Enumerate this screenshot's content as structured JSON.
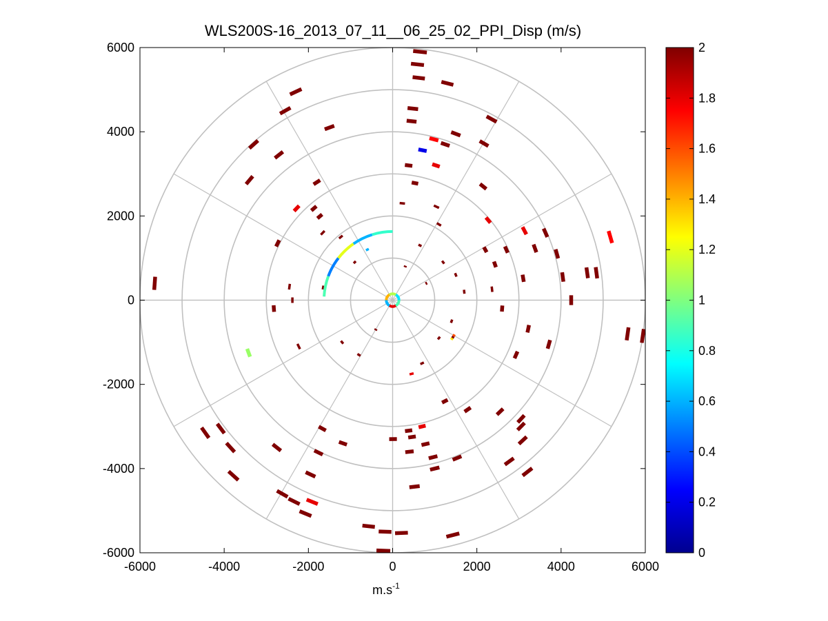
{
  "chart_data": {
    "type": "scatter",
    "plot_style": "polar PPI (plan position indicator) wind-lidar scan",
    "title": "WLS200S-16_2013_07_11__06_25_02_PPI_Disp (m/s)",
    "xlabel_base": "m.s",
    "xlabel_exponent": "-1",
    "xlim": [
      -6000,
      6000
    ],
    "ylim": [
      -6000,
      6000
    ],
    "x_ticks": [
      -6000,
      -4000,
      -2000,
      0,
      2000,
      4000,
      6000
    ],
    "y_ticks": [
      -6000,
      -4000,
      -2000,
      0,
      2000,
      4000,
      6000
    ],
    "x_tick_labels": [
      "-6000",
      "-4000",
      "-2000",
      "0",
      "2000",
      "4000",
      "6000"
    ],
    "y_tick_labels": [
      "-6000",
      "-4000",
      "-2000",
      "0",
      "2000",
      "4000",
      "6000"
    ],
    "range_rings": [
      1000,
      2000,
      3000,
      4000,
      5000,
      6000
    ],
    "spokes_deg": [
      0,
      30,
      60,
      90,
      120,
      150,
      180,
      210,
      240,
      270,
      300,
      330
    ],
    "colorbar": {
      "min": 0,
      "max": 2,
      "tick_values": [
        0,
        0.2,
        0.4,
        0.6,
        0.8,
        1,
        1.2,
        1.4,
        1.6,
        1.8,
        2
      ],
      "tick_labels": [
        "0",
        "0.2",
        "0.4",
        "0.6",
        "0.8",
        "1",
        "1.2",
        "1.4",
        "1.6",
        "1.8",
        "2"
      ],
      "colormap": "jet",
      "stops": [
        "#00008f",
        "#0000ff",
        "#00ffff",
        "#ffff00",
        "#ff0000",
        "#800000"
      ]
    },
    "grid_color": "#c0c0c0",
    "points": [
      {
        "x": 650,
        "y": 5900,
        "v": 2
      },
      {
        "x": 590,
        "y": 5600,
        "v": 2
      },
      {
        "x": 620,
        "y": 5280,
        "v": 2
      },
      {
        "x": 1300,
        "y": 5150,
        "v": 2
      },
      {
        "x": -2300,
        "y": 4950,
        "v": 2
      },
      {
        "x": -2550,
        "y": 4500,
        "v": 2
      },
      {
        "x": 480,
        "y": 4550,
        "v": 2
      },
      {
        "x": 450,
        "y": 4250,
        "v": 2
      },
      {
        "x": -1500,
        "y": 4100,
        "v": 2
      },
      {
        "x": 1500,
        "y": 3950,
        "v": 2
      },
      {
        "x": 2350,
        "y": 4300,
        "v": 2
      },
      {
        "x": -3300,
        "y": 3700,
        "v": 2
      },
      {
        "x": -2700,
        "y": 3450,
        "v": 2
      },
      {
        "x": 980,
        "y": 3820,
        "v": 1.75
      },
      {
        "x": 1250,
        "y": 3700,
        "v": 2
      },
      {
        "x": 2170,
        "y": 3720,
        "v": 2
      },
      {
        "x": 710,
        "y": 3560,
        "v": 0.2
      },
      {
        "x": 380,
        "y": 3200,
        "v": 2
      },
      {
        "x": 1030,
        "y": 3200,
        "v": 1.8
      },
      {
        "x": -3400,
        "y": 2850,
        "v": 2
      },
      {
        "x": -1800,
        "y": 2800,
        "v": 2
      },
      {
        "x": 530,
        "y": 2780,
        "v": 2
      },
      {
        "x": 2150,
        "y": 2700,
        "v": 2
      },
      {
        "x": -2280,
        "y": 2180,
        "v": 1.8
      },
      {
        "x": -1870,
        "y": 2180,
        "v": 2
      },
      {
        "x": 230,
        "y": 2300,
        "v": 2
      },
      {
        "x": 1040,
        "y": 2220,
        "v": 2
      },
      {
        "x": 2270,
        "y": 1900,
        "v": 1.8
      },
      {
        "x": 3130,
        "y": 1650,
        "v": 1.8
      },
      {
        "x": 3630,
        "y": 1600,
        "v": 2
      },
      {
        "x": 5170,
        "y": 1500,
        "v": 1.75
      },
      {
        "x": -1730,
        "y": 1990,
        "v": 2
      },
      {
        "x": -1660,
        "y": 1600,
        "v": 2
      },
      {
        "x": -2730,
        "y": 1350,
        "v": 2
      },
      {
        "x": -1230,
        "y": 1500,
        "v": 2
      },
      {
        "x": 3380,
        "y": 1230,
        "v": 2
      },
      {
        "x": 2200,
        "y": 1200,
        "v": 2
      },
      {
        "x": 2700,
        "y": 1200,
        "v": 2
      },
      {
        "x": 3900,
        "y": 1100,
        "v": 2
      },
      {
        "x": 2430,
        "y": 850,
        "v": 2
      },
      {
        "x": 4620,
        "y": 650,
        "v": 2
      },
      {
        "x": 4840,
        "y": 650,
        "v": 2
      },
      {
        "x": 4040,
        "y": 550,
        "v": 2
      },
      {
        "x": 3100,
        "y": 520,
        "v": 2
      },
      {
        "x": -5650,
        "y": 400,
        "v": 2
      },
      {
        "x": -2450,
        "y": 320,
        "v": 2
      },
      {
        "x": -2380,
        "y": 0,
        "v": 2
      },
      {
        "x": 2360,
        "y": 260,
        "v": 2
      },
      {
        "x": 4240,
        "y": 0,
        "v": 2
      },
      {
        "x": -2820,
        "y": -200,
        "v": 2
      },
      {
        "x": 2600,
        "y": -200,
        "v": 2
      },
      {
        "x": 5580,
        "y": -800,
        "v": 2
      },
      {
        "x": 5940,
        "y": -850,
        "v": 2
      },
      {
        "x": 3220,
        "y": -680,
        "v": 2
      },
      {
        "x": -3420,
        "y": -1250,
        "v": 1.05
      },
      {
        "x": -2230,
        "y": -1100,
        "v": 2
      },
      {
        "x": 3710,
        "y": -1050,
        "v": 2
      },
      {
        "x": 2930,
        "y": -1300,
        "v": 2
      },
      {
        "x": 1240,
        "y": -2400,
        "v": 2
      },
      {
        "x": 1780,
        "y": -2600,
        "v": 2
      },
      {
        "x": 2550,
        "y": -2650,
        "v": 2
      },
      {
        "x": 3050,
        "y": -2820,
        "v": 2
      },
      {
        "x": 3050,
        "y": -3000,
        "v": 2
      },
      {
        "x": 3090,
        "y": -3330,
        "v": 2
      },
      {
        "x": -4450,
        "y": -3150,
        "v": 2
      },
      {
        "x": -4080,
        "y": -3050,
        "v": 2
      },
      {
        "x": -3850,
        "y": -3500,
        "v": 2
      },
      {
        "x": -2750,
        "y": -3500,
        "v": 2
      },
      {
        "x": -1670,
        "y": -3050,
        "v": 2
      },
      {
        "x": -1180,
        "y": -3400,
        "v": 2
      },
      {
        "x": 380,
        "y": -3100,
        "v": 2
      },
      {
        "x": 700,
        "y": -3000,
        "v": 1.8
      },
      {
        "x": 460,
        "y": -3250,
        "v": 2
      },
      {
        "x": 10,
        "y": -3300,
        "v": 2
      },
      {
        "x": 780,
        "y": -3420,
        "v": 2
      },
      {
        "x": 400,
        "y": -3600,
        "v": 2
      },
      {
        "x": -1760,
        "y": -3620,
        "v": 2
      },
      {
        "x": 960,
        "y": -3730,
        "v": 2
      },
      {
        "x": 1530,
        "y": -3750,
        "v": 2
      },
      {
        "x": 2770,
        "y": -3830,
        "v": 2
      },
      {
        "x": 1000,
        "y": -4000,
        "v": 2
      },
      {
        "x": 3200,
        "y": -4080,
        "v": 2
      },
      {
        "x": -3780,
        "y": -4170,
        "v": 2
      },
      {
        "x": -1950,
        "y": -4140,
        "v": 2
      },
      {
        "x": 520,
        "y": -4430,
        "v": 2
      },
      {
        "x": -2620,
        "y": -4600,
        "v": 2
      },
      {
        "x": -2340,
        "y": -4780,
        "v": 2
      },
      {
        "x": -1910,
        "y": -4790,
        "v": 1.8
      },
      {
        "x": -2070,
        "y": -5070,
        "v": 2
      },
      {
        "x": -570,
        "y": -5370,
        "v": 2
      },
      {
        "x": -180,
        "y": -5500,
        "v": 2
      },
      {
        "x": 210,
        "y": -5530,
        "v": 2
      },
      {
        "x": 1430,
        "y": -5580,
        "v": 2
      },
      {
        "x": -220,
        "y": -5950,
        "v": 2
      },
      {
        "x": 1100,
        "y": 1800,
        "v": 2
      },
      {
        "x": 650,
        "y": 1300,
        "v": 2
      },
      {
        "x": 1200,
        "y": 900,
        "v": 2
      },
      {
        "x": 1500,
        "y": 600,
        "v": 2
      },
      {
        "x": 1700,
        "y": 200,
        "v": 2
      },
      {
        "x": 1400,
        "y": -500,
        "v": 2
      },
      {
        "x": 1100,
        "y": -900,
        "v": 2
      },
      {
        "x": 700,
        "y": -1500,
        "v": 2
      },
      {
        "x": 450,
        "y": -1750,
        "v": 1.8
      },
      {
        "x": -800,
        "y": -1300,
        "v": 2
      },
      {
        "x": -1200,
        "y": -1000,
        "v": 2
      },
      {
        "x": -1650,
        "y": 300,
        "v": 2
      },
      {
        "x": -900,
        "y": 900,
        "v": 2
      },
      {
        "x": -600,
        "y": 1200,
        "v": 0.6
      },
      {
        "x": 300,
        "y": 800,
        "v": 2
      },
      {
        "x": 800,
        "y": 400,
        "v": 2
      },
      {
        "x": -400,
        "y": -700,
        "v": 2
      }
    ],
    "arcs": [
      {
        "radius": 1630,
        "start_deg": 0,
        "end_deg": 87,
        "values": [
          0.85,
          0.6,
          1.2,
          0.5,
          0.9
        ]
      },
      {
        "radius": 1680,
        "start_deg": 236,
        "end_deg": 241,
        "values": [
          1.3,
          2,
          1.6
        ]
      }
    ],
    "center_ring": {
      "radius": 150,
      "values": [
        0.7,
        1.1,
        1.4,
        0.6,
        1.8,
        0.9
      ]
    }
  }
}
